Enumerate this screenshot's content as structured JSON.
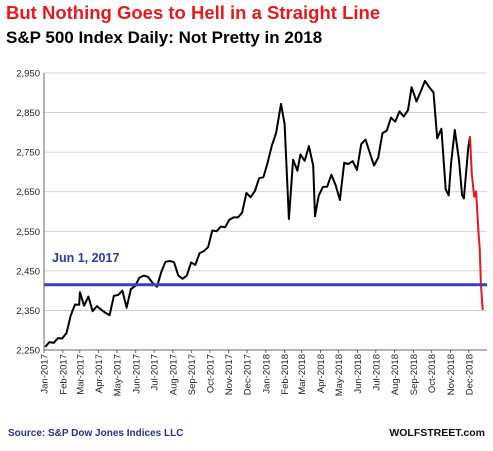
{
  "title": "But Nothing Goes to Hell in a Straight Line",
  "subtitle": "S&P 500 Index Daily: Not Pretty in 2018",
  "source": "Source: S&P Dow Jones Indices LLC",
  "brand": "WOLFSTREET.com",
  "colors": {
    "title": "#e8191c",
    "line": "#000000",
    "recent": "#e8191c",
    "reference": "#3b3fbf",
    "annotation": "#2f3aa8"
  },
  "chart_data": {
    "type": "line",
    "title": "S&P 500 Index Daily: Not Pretty in 2018",
    "ylim": [
      2250,
      2950
    ],
    "yticks": [
      2250,
      2350,
      2450,
      2550,
      2650,
      2750,
      2850,
      2950
    ],
    "ytick_labels": [
      "2,250",
      "2,350",
      "2,450",
      "2,550",
      "2,650",
      "2,750",
      "2,850",
      "2,950"
    ],
    "xlim": [
      "2017-01-01",
      "2018-12-31"
    ],
    "xticks": [
      "Jan-2017",
      "Feb-2017",
      "Mar-2017",
      "Apr-2017",
      "May-2017",
      "Jun-2017",
      "Jul-2017",
      "Aug-2017",
      "Sep-2017",
      "Oct-2017",
      "Nov-2017",
      "Dec-2017",
      "Jan-2018",
      "Feb-2018",
      "Mar-2018",
      "Apr-2018",
      "May-2018",
      "Jun-2018",
      "Jul-2018",
      "Aug-2018",
      "Sep-2018",
      "Oct-2018",
      "Nov-2018",
      "Dec-2018"
    ],
    "grid": "horizontal",
    "reference_line": {
      "y": 2415,
      "label": "Jun 1, 2017"
    },
    "series": [
      {
        "color": "#000000",
        "points": [
          [
            "2017-01-03",
            2258
          ],
          [
            "2017-01-10",
            2270
          ],
          [
            "2017-01-17",
            2268
          ],
          [
            "2017-01-24",
            2280
          ],
          [
            "2017-01-31",
            2279
          ],
          [
            "2017-02-07",
            2293
          ],
          [
            "2017-02-14",
            2337
          ],
          [
            "2017-02-21",
            2365
          ],
          [
            "2017-02-28",
            2364
          ],
          [
            "2017-03-01",
            2396
          ],
          [
            "2017-03-08",
            2362
          ],
          [
            "2017-03-15",
            2385
          ],
          [
            "2017-03-22",
            2348
          ],
          [
            "2017-03-29",
            2361
          ],
          [
            "2017-04-05",
            2352
          ],
          [
            "2017-04-12",
            2344
          ],
          [
            "2017-04-19",
            2338
          ],
          [
            "2017-04-26",
            2387
          ],
          [
            "2017-05-03",
            2389
          ],
          [
            "2017-05-10",
            2400
          ],
          [
            "2017-05-17",
            2357
          ],
          [
            "2017-05-24",
            2404
          ],
          [
            "2017-05-31",
            2412
          ],
          [
            "2017-06-07",
            2433
          ],
          [
            "2017-06-14",
            2438
          ],
          [
            "2017-06-21",
            2435
          ],
          [
            "2017-06-29",
            2419
          ],
          [
            "2017-07-06",
            2410
          ],
          [
            "2017-07-13",
            2447
          ],
          [
            "2017-07-20",
            2473
          ],
          [
            "2017-07-27",
            2475
          ],
          [
            "2017-08-03",
            2472
          ],
          [
            "2017-08-10",
            2438
          ],
          [
            "2017-08-17",
            2430
          ],
          [
            "2017-08-24",
            2438
          ],
          [
            "2017-08-31",
            2471
          ],
          [
            "2017-09-07",
            2465
          ],
          [
            "2017-09-14",
            2495
          ],
          [
            "2017-09-21",
            2500
          ],
          [
            "2017-09-28",
            2510
          ],
          [
            "2017-10-05",
            2552
          ],
          [
            "2017-10-12",
            2550
          ],
          [
            "2017-10-19",
            2562
          ],
          [
            "2017-10-26",
            2560
          ],
          [
            "2017-11-02",
            2579
          ],
          [
            "2017-11-09",
            2585
          ],
          [
            "2017-11-16",
            2585
          ],
          [
            "2017-11-23",
            2597
          ],
          [
            "2017-11-30",
            2647
          ],
          [
            "2017-12-07",
            2636
          ],
          [
            "2017-12-14",
            2652
          ],
          [
            "2017-12-21",
            2684
          ],
          [
            "2017-12-28",
            2687
          ],
          [
            "2018-01-04",
            2723
          ],
          [
            "2018-01-11",
            2767
          ],
          [
            "2018-01-18",
            2798
          ],
          [
            "2018-01-26",
            2872
          ],
          [
            "2018-02-01",
            2821
          ],
          [
            "2018-02-08",
            2581
          ],
          [
            "2018-02-15",
            2731
          ],
          [
            "2018-02-22",
            2703
          ],
          [
            "2018-02-27",
            2744
          ],
          [
            "2018-03-06",
            2728
          ],
          [
            "2018-03-13",
            2765
          ],
          [
            "2018-03-20",
            2716
          ],
          [
            "2018-03-23",
            2588
          ],
          [
            "2018-03-29",
            2640
          ],
          [
            "2018-04-05",
            2662
          ],
          [
            "2018-04-12",
            2663
          ],
          [
            "2018-04-19",
            2693
          ],
          [
            "2018-04-26",
            2666
          ],
          [
            "2018-05-03",
            2629
          ],
          [
            "2018-05-10",
            2723
          ],
          [
            "2018-05-17",
            2720
          ],
          [
            "2018-05-24",
            2727
          ],
          [
            "2018-05-31",
            2705
          ],
          [
            "2018-06-07",
            2770
          ],
          [
            "2018-06-14",
            2782
          ],
          [
            "2018-06-21",
            2749
          ],
          [
            "2018-06-28",
            2716
          ],
          [
            "2018-07-05",
            2736
          ],
          [
            "2018-07-12",
            2798
          ],
          [
            "2018-07-19",
            2804
          ],
          [
            "2018-07-26",
            2837
          ],
          [
            "2018-08-02",
            2827
          ],
          [
            "2018-08-09",
            2853
          ],
          [
            "2018-08-16",
            2840
          ],
          [
            "2018-08-23",
            2856
          ],
          [
            "2018-08-29",
            2914
          ],
          [
            "2018-09-06",
            2878
          ],
          [
            "2018-09-13",
            2904
          ],
          [
            "2018-09-20",
            2930
          ],
          [
            "2018-09-27",
            2914
          ],
          [
            "2018-10-04",
            2901
          ],
          [
            "2018-10-10",
            2785
          ],
          [
            "2018-10-17",
            2809
          ],
          [
            "2018-10-24",
            2656
          ],
          [
            "2018-10-29",
            2641
          ],
          [
            "2018-11-02",
            2723
          ],
          [
            "2018-11-08",
            2806
          ],
          [
            "2018-11-15",
            2730
          ],
          [
            "2018-11-20",
            2641
          ],
          [
            "2018-11-23",
            2633
          ],
          [
            "2018-11-30",
            2760
          ],
          [
            "2018-12-03",
            2790
          ]
        ]
      },
      {
        "color": "#e8191c",
        "points": [
          [
            "2018-12-03",
            2790
          ],
          [
            "2018-12-06",
            2695
          ],
          [
            "2018-12-10",
            2637
          ],
          [
            "2018-12-13",
            2651
          ],
          [
            "2018-12-17",
            2546
          ],
          [
            "2018-12-19",
            2507
          ],
          [
            "2018-12-21",
            2417
          ],
          [
            "2018-12-24",
            2351
          ]
        ]
      }
    ]
  }
}
